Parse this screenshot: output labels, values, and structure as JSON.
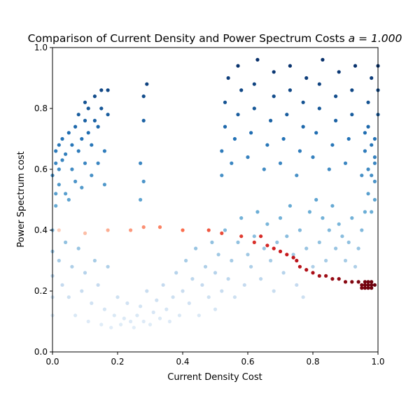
{
  "chart_data": {
    "type": "scatter",
    "title": "Comparison of Current Density and Power Spectrum Costs ",
    "title_math": "a = 1.000",
    "xlabel": "Current Density Cost",
    "ylabel": "Power Spectrum cost",
    "xlim": [
      0,
      1
    ],
    "ylim": [
      0,
      1
    ],
    "x_ticks": [
      "0.0",
      "0.2",
      "0.4",
      "0.6",
      "0.8",
      "1.0"
    ],
    "y_ticks": [
      "0.0",
      "0.2",
      "0.4",
      "0.6",
      "0.8",
      "1.0"
    ],
    "grid": false,
    "legend": "none",
    "colormaps": [
      "Blues",
      "Reds"
    ],
    "series": [
      {
        "cmap": "Blues",
        "points": [
          [
            0.0,
            0.12
          ],
          [
            0.0,
            0.18
          ],
          [
            0.0,
            0.25
          ],
          [
            0.0,
            0.33
          ],
          [
            0.0,
            0.4
          ],
          [
            0.01,
            0.48
          ],
          [
            0.01,
            0.52
          ],
          [
            0.0,
            0.58
          ],
          [
            0.01,
            0.62
          ],
          [
            0.01,
            0.66
          ],
          [
            0.02,
            0.55
          ],
          [
            0.02,
            0.6
          ],
          [
            0.02,
            0.68
          ],
          [
            0.03,
            0.63
          ],
          [
            0.03,
            0.7
          ],
          [
            0.04,
            0.52
          ],
          [
            0.04,
            0.65
          ],
          [
            0.05,
            0.72
          ],
          [
            0.05,
            0.5
          ],
          [
            0.06,
            0.6
          ],
          [
            0.06,
            0.68
          ],
          [
            0.07,
            0.74
          ],
          [
            0.07,
            0.56
          ],
          [
            0.08,
            0.66
          ],
          [
            0.08,
            0.78
          ],
          [
            0.09,
            0.54
          ],
          [
            0.09,
            0.7
          ],
          [
            0.1,
            0.76
          ],
          [
            0.1,
            0.82
          ],
          [
            0.1,
            0.62
          ],
          [
            0.11,
            0.72
          ],
          [
            0.11,
            0.8
          ],
          [
            0.12,
            0.58
          ],
          [
            0.12,
            0.68
          ],
          [
            0.13,
            0.76
          ],
          [
            0.13,
            0.84
          ],
          [
            0.14,
            0.62
          ],
          [
            0.14,
            0.74
          ],
          [
            0.15,
            0.8
          ],
          [
            0.15,
            0.86
          ],
          [
            0.16,
            0.55
          ],
          [
            0.16,
            0.66
          ],
          [
            0.17,
            0.78
          ],
          [
            0.17,
            0.86
          ],
          [
            0.27,
            0.62
          ],
          [
            0.27,
            0.5
          ],
          [
            0.28,
            0.76
          ],
          [
            0.28,
            0.84
          ],
          [
            0.29,
            0.88
          ],
          [
            0.28,
            0.56
          ],
          [
            0.02,
            0.3
          ],
          [
            0.03,
            0.22
          ],
          [
            0.04,
            0.36
          ],
          [
            0.05,
            0.18
          ],
          [
            0.06,
            0.28
          ],
          [
            0.07,
            0.12
          ],
          [
            0.08,
            0.34
          ],
          [
            0.09,
            0.2
          ],
          [
            0.1,
            0.26
          ],
          [
            0.11,
            0.1
          ],
          [
            0.12,
            0.16
          ],
          [
            0.13,
            0.3
          ],
          [
            0.14,
            0.22
          ],
          [
            0.15,
            0.09
          ],
          [
            0.16,
            0.14
          ],
          [
            0.17,
            0.28
          ],
          [
            0.18,
            0.08
          ],
          [
            0.19,
            0.12
          ],
          [
            0.2,
            0.18
          ],
          [
            0.21,
            0.09
          ],
          [
            0.22,
            0.11
          ],
          [
            0.23,
            0.16
          ],
          [
            0.24,
            0.1
          ],
          [
            0.25,
            0.08
          ],
          [
            0.26,
            0.12
          ],
          [
            0.27,
            0.15
          ],
          [
            0.28,
            0.1
          ],
          [
            0.29,
            0.2
          ],
          [
            0.3,
            0.09
          ],
          [
            0.31,
            0.13
          ],
          [
            0.32,
            0.17
          ],
          [
            0.33,
            0.11
          ],
          [
            0.34,
            0.22
          ],
          [
            0.35,
            0.14
          ],
          [
            0.36,
            0.1
          ],
          [
            0.37,
            0.18
          ],
          [
            0.38,
            0.26
          ],
          [
            0.39,
            0.12
          ],
          [
            0.4,
            0.2
          ],
          [
            0.41,
            0.3
          ],
          [
            0.42,
            0.16
          ],
          [
            0.43,
            0.24
          ],
          [
            0.44,
            0.34
          ],
          [
            0.45,
            0.12
          ],
          [
            0.46,
            0.22
          ],
          [
            0.47,
            0.28
          ],
          [
            0.48,
            0.18
          ],
          [
            0.49,
            0.36
          ],
          [
            0.5,
            0.14
          ],
          [
            0.5,
            0.26
          ],
          [
            0.51,
            0.32
          ],
          [
            0.52,
            0.2
          ],
          [
            0.53,
            0.4
          ],
          [
            0.54,
            0.24
          ],
          [
            0.55,
            0.3
          ],
          [
            0.56,
            0.18
          ],
          [
            0.57,
            0.36
          ],
          [
            0.58,
            0.44
          ],
          [
            0.59,
            0.22
          ],
          [
            0.6,
            0.32
          ],
          [
            0.61,
            0.28
          ],
          [
            0.62,
            0.38
          ],
          [
            0.63,
            0.46
          ],
          [
            0.64,
            0.24
          ],
          [
            0.65,
            0.34
          ],
          [
            0.66,
            0.42
          ],
          [
            0.67,
            0.3
          ],
          [
            0.68,
            0.2
          ],
          [
            0.69,
            0.36
          ],
          [
            0.7,
            0.44
          ],
          [
            0.71,
            0.26
          ],
          [
            0.72,
            0.38
          ],
          [
            0.73,
            0.48
          ],
          [
            0.74,
            0.32
          ],
          [
            0.75,
            0.22
          ],
          [
            0.76,
            0.4
          ],
          [
            0.77,
            0.18
          ],
          [
            0.78,
            0.34
          ],
          [
            0.79,
            0.46
          ],
          [
            0.8,
            0.28
          ],
          [
            0.81,
            0.5
          ],
          [
            0.82,
            0.36
          ],
          [
            0.83,
            0.44
          ],
          [
            0.84,
            0.3
          ],
          [
            0.85,
            0.4
          ],
          [
            0.86,
            0.48
          ],
          [
            0.87,
            0.34
          ],
          [
            0.88,
            0.42
          ],
          [
            0.89,
            0.38
          ],
          [
            0.9,
            0.3
          ],
          [
            0.91,
            0.36
          ],
          [
            0.92,
            0.44
          ],
          [
            0.93,
            0.28
          ],
          [
            0.94,
            0.34
          ],
          [
            0.95,
            0.4
          ],
          [
            0.96,
            0.46
          ],
          [
            0.97,
            0.52
          ],
          [
            0.98,
            0.58
          ],
          [
            0.99,
            0.64
          ],
          [
            0.99,
            0.7
          ],
          [
            0.52,
            0.58
          ],
          [
            0.52,
            0.66
          ],
          [
            0.53,
            0.74
          ],
          [
            0.53,
            0.82
          ],
          [
            0.54,
            0.9
          ],
          [
            0.55,
            0.62
          ],
          [
            0.56,
            0.7
          ],
          [
            0.57,
            0.78
          ],
          [
            0.57,
            0.94
          ],
          [
            0.58,
            0.86
          ],
          [
            0.6,
            0.64
          ],
          [
            0.61,
            0.72
          ],
          [
            0.62,
            0.8
          ],
          [
            0.62,
            0.88
          ],
          [
            0.63,
            0.96
          ],
          [
            0.65,
            0.6
          ],
          [
            0.66,
            0.68
          ],
          [
            0.67,
            0.76
          ],
          [
            0.68,
            0.84
          ],
          [
            0.68,
            0.92
          ],
          [
            0.7,
            0.62
          ],
          [
            0.71,
            0.7
          ],
          [
            0.72,
            0.78
          ],
          [
            0.73,
            0.86
          ],
          [
            0.73,
            0.94
          ],
          [
            0.75,
            0.58
          ],
          [
            0.76,
            0.66
          ],
          [
            0.77,
            0.74
          ],
          [
            0.77,
            0.82
          ],
          [
            0.78,
            0.9
          ],
          [
            0.8,
            0.64
          ],
          [
            0.81,
            0.72
          ],
          [
            0.82,
            0.8
          ],
          [
            0.82,
            0.88
          ],
          [
            0.83,
            0.96
          ],
          [
            0.85,
            0.6
          ],
          [
            0.86,
            0.68
          ],
          [
            0.87,
            0.76
          ],
          [
            0.87,
            0.84
          ],
          [
            0.88,
            0.92
          ],
          [
            0.9,
            0.62
          ],
          [
            0.91,
            0.7
          ],
          [
            0.92,
            0.78
          ],
          [
            0.92,
            0.86
          ],
          [
            0.93,
            0.94
          ],
          [
            0.95,
            0.58
          ],
          [
            0.96,
            0.66
          ],
          [
            0.97,
            0.74
          ],
          [
            0.97,
            0.82
          ],
          [
            0.98,
            0.9
          ],
          [
            0.99,
            0.5
          ],
          [
            0.99,
            0.56
          ],
          [
            0.98,
            0.46
          ],
          [
            0.99,
            0.62
          ],
          [
            1.0,
            0.78
          ],
          [
            1.0,
            0.86
          ],
          [
            1.0,
            0.94
          ],
          [
            0.96,
            0.72
          ],
          [
            0.97,
            0.6
          ],
          [
            0.98,
            0.68
          ]
        ]
      },
      {
        "cmap": "Reds",
        "points": [
          [
            0.02,
            0.4
          ],
          [
            0.1,
            0.39
          ],
          [
            0.17,
            0.4
          ],
          [
            0.24,
            0.4
          ],
          [
            0.28,
            0.41
          ],
          [
            0.33,
            0.41
          ],
          [
            0.4,
            0.4
          ],
          [
            0.48,
            0.4
          ],
          [
            0.52,
            0.39
          ],
          [
            0.58,
            0.38
          ],
          [
            0.62,
            0.36
          ],
          [
            0.64,
            0.38
          ],
          [
            0.66,
            0.35
          ],
          [
            0.68,
            0.34
          ],
          [
            0.7,
            0.33
          ],
          [
            0.72,
            0.32
          ],
          [
            0.74,
            0.31
          ],
          [
            0.75,
            0.3
          ],
          [
            0.76,
            0.28
          ],
          [
            0.78,
            0.27
          ],
          [
            0.8,
            0.26
          ],
          [
            0.82,
            0.25
          ],
          [
            0.84,
            0.25
          ],
          [
            0.86,
            0.24
          ],
          [
            0.88,
            0.24
          ],
          [
            0.9,
            0.23
          ],
          [
            0.92,
            0.23
          ],
          [
            0.94,
            0.23
          ],
          [
            0.95,
            0.22
          ],
          [
            0.96,
            0.22
          ],
          [
            0.96,
            0.21
          ],
          [
            0.97,
            0.22
          ],
          [
            0.97,
            0.21
          ],
          [
            0.98,
            0.22
          ],
          [
            0.98,
            0.21
          ],
          [
            0.96,
            0.23
          ],
          [
            0.97,
            0.23
          ],
          [
            0.95,
            0.21
          ],
          [
            0.99,
            0.22
          ],
          [
            0.98,
            0.23
          ]
        ]
      }
    ]
  }
}
